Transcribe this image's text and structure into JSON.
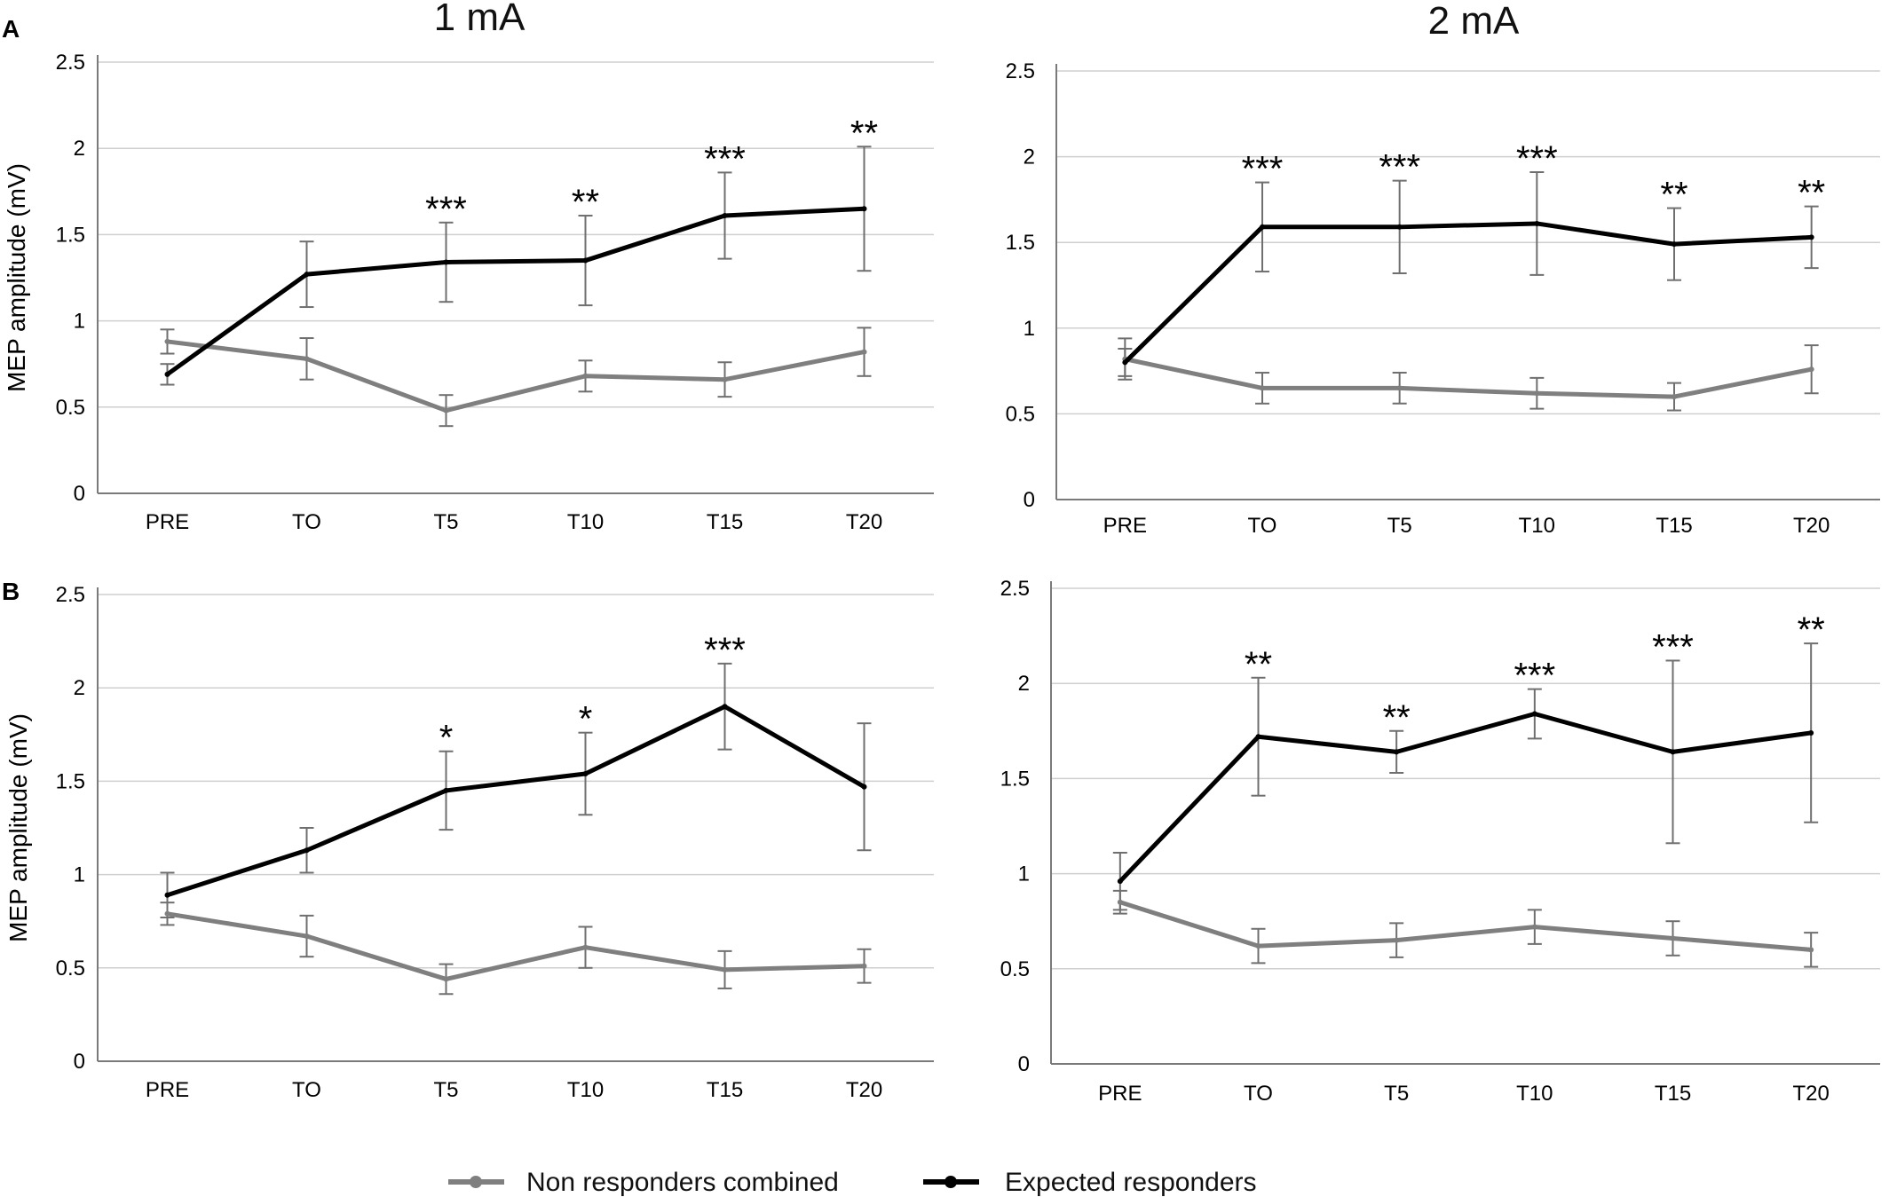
{
  "column_titles": [
    "1 mA",
    "2 mA"
  ],
  "panel_letters": [
    "A",
    "B"
  ],
  "legend": {
    "items": [
      {
        "label": "Non responders combined",
        "color": "#7f7f7f"
      },
      {
        "label": "Expected responders",
        "color": "#000000"
      }
    ]
  },
  "chart_data": [
    {
      "type": "line",
      "panel": "A",
      "title": "1 mA",
      "xlabel": "",
      "ylabel": "MEP amplitude (mV)",
      "categories": [
        "PRE",
        "TO",
        "T5",
        "T10",
        "T15",
        "T20"
      ],
      "yticks": [
        "0",
        "0.5",
        "1",
        "1.5",
        "2",
        "2.5"
      ],
      "ylim": [
        0,
        2.5
      ],
      "grid": true,
      "series": [
        {
          "name": "Non responders combined",
          "color": "#7f7f7f",
          "values": [
            0.88,
            0.78,
            0.48,
            0.68,
            0.66,
            0.82
          ],
          "errors": [
            0.07,
            0.12,
            0.09,
            0.09,
            0.1,
            0.14
          ]
        },
        {
          "name": "Expected responders",
          "color": "#000000",
          "values": [
            0.69,
            1.27,
            1.34,
            1.35,
            1.61,
            1.65
          ],
          "errors": [
            0.06,
            0.19,
            0.23,
            0.26,
            0.25,
            0.36
          ]
        }
      ],
      "annotations": [
        "",
        "",
        "***",
        "**",
        "***",
        "**"
      ]
    },
    {
      "type": "line",
      "panel": "A",
      "title": "2 mA",
      "xlabel": "",
      "ylabel": "",
      "categories": [
        "PRE",
        "TO",
        "T5",
        "T10",
        "T15",
        "T20"
      ],
      "yticks": [
        "0",
        "0.5",
        "1",
        "1.5",
        "2",
        "2.5"
      ],
      "ylim": [
        0,
        2.5
      ],
      "grid": true,
      "series": [
        {
          "name": "Non responders combined",
          "color": "#7f7f7f",
          "values": [
            0.82,
            0.65,
            0.65,
            0.62,
            0.6,
            0.76
          ],
          "errors": [
            0.12,
            0.09,
            0.09,
            0.09,
            0.08,
            0.14
          ]
        },
        {
          "name": "Expected responders",
          "color": "#000000",
          "values": [
            0.8,
            1.59,
            1.59,
            1.61,
            1.49,
            1.53
          ],
          "errors": [
            0.08,
            0.26,
            0.27,
            0.3,
            0.21,
            0.18
          ]
        }
      ],
      "annotations": [
        "",
        "***",
        "***",
        "***",
        "**",
        "**"
      ]
    },
    {
      "type": "line",
      "panel": "B",
      "title": "",
      "xlabel": "",
      "ylabel": "MEP amplitude (mV)",
      "categories": [
        "PRE",
        "TO",
        "T5",
        "T10",
        "T15",
        "T20"
      ],
      "yticks": [
        "0",
        "0.5",
        "1",
        "1.5",
        "2",
        "2.5"
      ],
      "ylim": [
        0,
        2.5
      ],
      "grid": true,
      "series": [
        {
          "name": "Non responders combined",
          "color": "#7f7f7f",
          "values": [
            0.79,
            0.67,
            0.44,
            0.61,
            0.49,
            0.51
          ],
          "errors": [
            0.06,
            0.11,
            0.08,
            0.11,
            0.1,
            0.09
          ]
        },
        {
          "name": "Expected responders",
          "color": "#000000",
          "values": [
            0.89,
            1.13,
            1.45,
            1.54,
            1.9,
            1.47
          ],
          "errors": [
            0.12,
            0.12,
            0.21,
            0.22,
            0.23,
            0.34
          ]
        }
      ],
      "annotations": [
        "",
        "",
        "*",
        "*",
        "***",
        ""
      ]
    },
    {
      "type": "line",
      "panel": "B",
      "title": "",
      "xlabel": "",
      "ylabel": "",
      "categories": [
        "PRE",
        "TO",
        "T5",
        "T10",
        "T15",
        "T20"
      ],
      "yticks": [
        "0",
        "0.5",
        "1",
        "1.5",
        "2",
        "2.5"
      ],
      "ylim": [
        0,
        2.5
      ],
      "grid": true,
      "series": [
        {
          "name": "Non responders combined",
          "color": "#7f7f7f",
          "values": [
            0.85,
            0.62,
            0.65,
            0.72,
            0.66,
            0.6
          ],
          "errors": [
            0.06,
            0.09,
            0.09,
            0.09,
            0.09,
            0.09
          ]
        },
        {
          "name": "Expected responders",
          "color": "#000000",
          "values": [
            0.96,
            1.72,
            1.64,
            1.84,
            1.64,
            1.74
          ],
          "errors": [
            0.15,
            0.31,
            0.11,
            0.13,
            0.48,
            0.47
          ]
        }
      ],
      "annotations": [
        "",
        "**",
        "**",
        "***",
        "***",
        "**"
      ]
    }
  ]
}
